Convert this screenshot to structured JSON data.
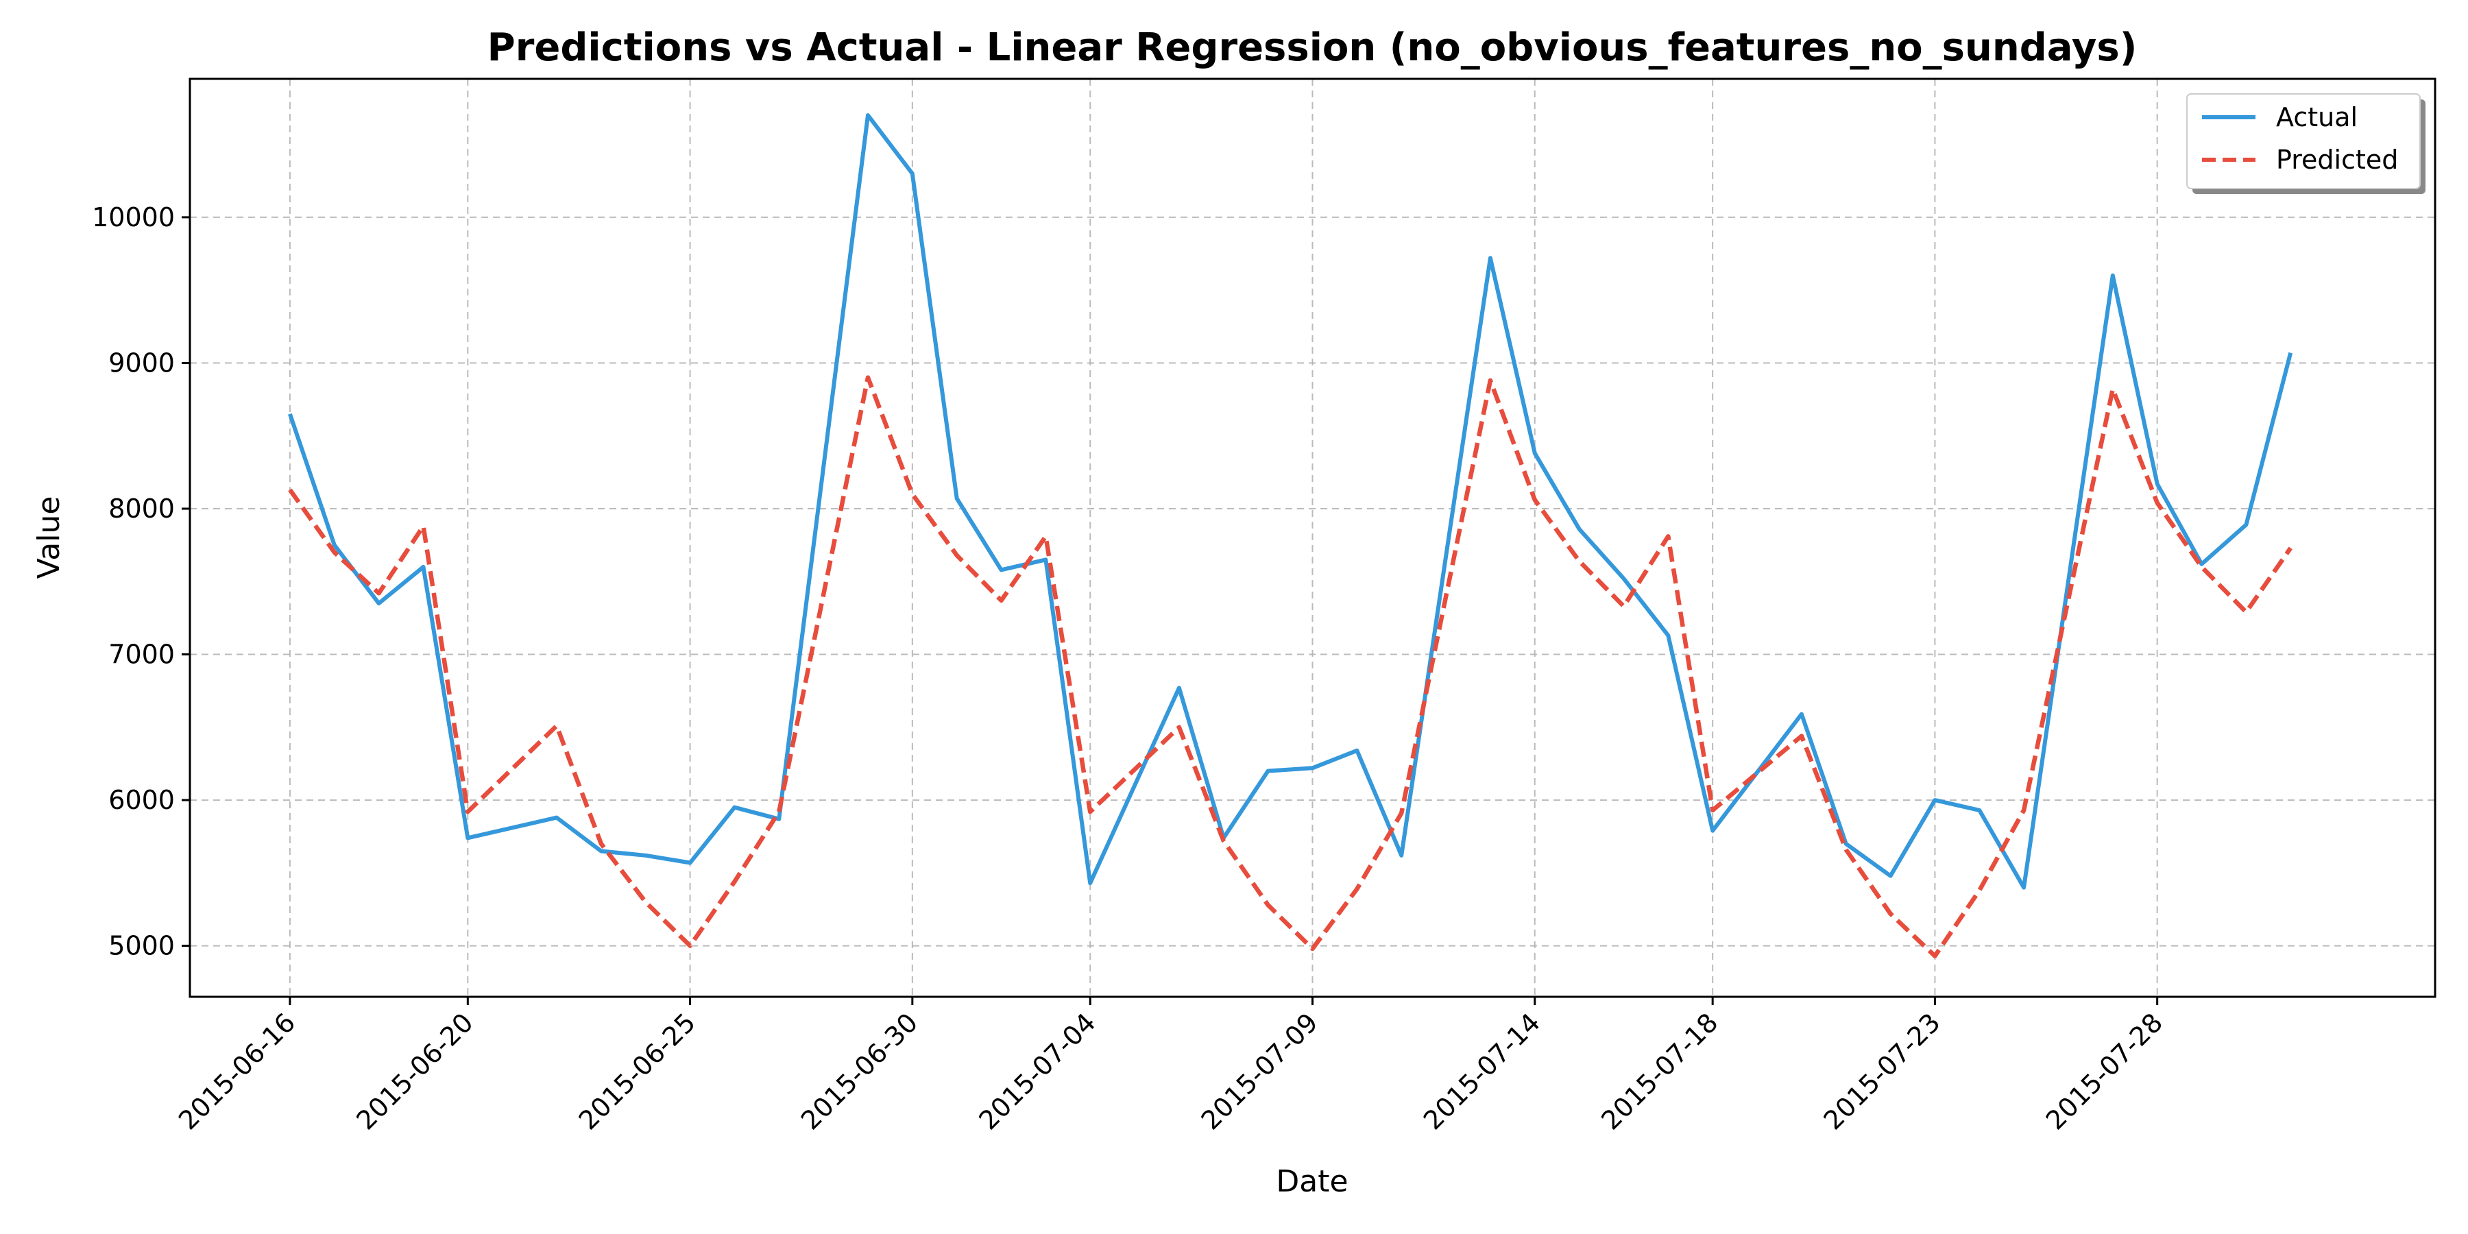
{
  "chart_data": {
    "type": "line",
    "title": "Predictions vs Actual - Linear Regression (no_obvious_features_no_sundays)",
    "xlabel": "Date",
    "ylabel": "Value",
    "xlim": [
      "2015-06-13T18:00",
      "2015-08-03T06:00"
    ],
    "ylim": [
      4650,
      10950
    ],
    "yticks": [
      5000,
      6000,
      7000,
      8000,
      9000,
      10000
    ],
    "xticks": [
      "2015-06-16",
      "2015-06-20",
      "2015-06-25",
      "2015-06-30",
      "2015-07-04",
      "2015-07-09",
      "2015-07-14",
      "2015-07-18",
      "2015-07-23",
      "2015-07-28"
    ],
    "grid": true,
    "legend_position": "top-right",
    "x": [
      "2015-06-16",
      "2015-06-17",
      "2015-06-18",
      "2015-06-19",
      "2015-06-20",
      "2015-06-22",
      "2015-06-23",
      "2015-06-24",
      "2015-06-25",
      "2015-06-26",
      "2015-06-27",
      "2015-06-29",
      "2015-06-30",
      "2015-07-01",
      "2015-07-02",
      "2015-07-03",
      "2015-07-04",
      "2015-07-06",
      "2015-07-07",
      "2015-07-08",
      "2015-07-09",
      "2015-07-10",
      "2015-07-11",
      "2015-07-13",
      "2015-07-14",
      "2015-07-15",
      "2015-07-16",
      "2015-07-17",
      "2015-07-18",
      "2015-07-20",
      "2015-07-21",
      "2015-07-22",
      "2015-07-23",
      "2015-07-24",
      "2015-07-25",
      "2015-07-27",
      "2015-07-28",
      "2015-07-29",
      "2015-07-30",
      "2015-07-31"
    ],
    "series": [
      {
        "name": "Actual",
        "color": "#3498db",
        "style": "solid",
        "values": [
          8650,
          7750,
          7350,
          7600,
          5740,
          5880,
          5650,
          5620,
          5570,
          5950,
          5870,
          10700,
          10300,
          8070,
          7580,
          7650,
          5430,
          6770,
          5740,
          6200,
          6220,
          6340,
          5620,
          9720,
          8380,
          7860,
          7520,
          7130,
          5790,
          6590,
          5700,
          5480,
          6000,
          5930,
          5400,
          9600,
          8170,
          7620,
          7890,
          9070
        ]
      },
      {
        "name": "Predicted",
        "color": "#e74c3c",
        "style": "dashed",
        "values": [
          8130,
          7700,
          7420,
          7880,
          5920,
          6510,
          5700,
          5300,
          5000,
          5440,
          5920,
          8900,
          8100,
          7680,
          7370,
          7810,
          5920,
          6500,
          5720,
          5280,
          4980,
          5390,
          5910,
          8880,
          8060,
          7640,
          7330,
          7810,
          5930,
          6440,
          5660,
          5220,
          4930,
          5380,
          5930,
          8820,
          8040,
          7600,
          7290,
          7730
        ]
      }
    ]
  }
}
